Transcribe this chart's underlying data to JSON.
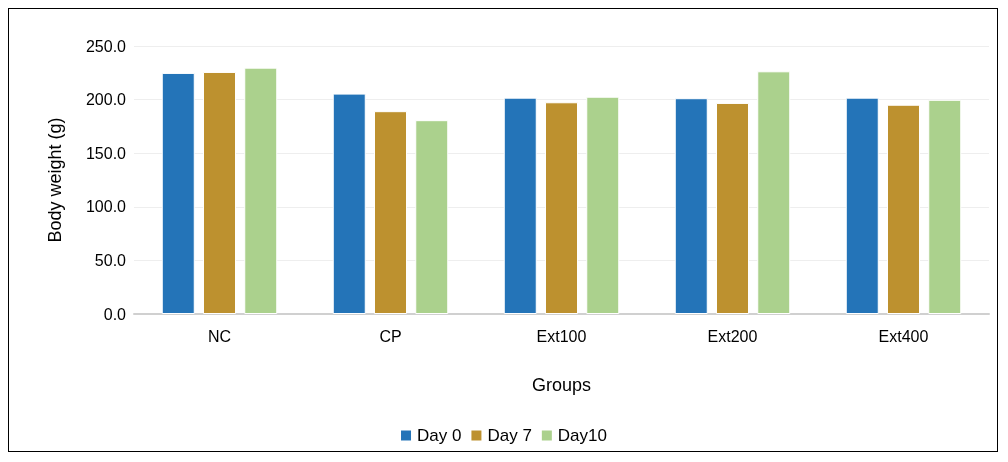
{
  "chart_data": {
    "type": "bar",
    "xlabel": "Groups",
    "ylabel": "Body weight (g)",
    "categories": [
      "NC",
      "CP",
      "Ext100",
      "Ext200",
      "Ext400"
    ],
    "series": [
      {
        "name": "Day 0",
        "color": "#2474b8",
        "values": [
          224.9,
          205.6,
          201.8,
          201.3,
          201.8
        ]
      },
      {
        "name": "Day 7",
        "color": "#bd912f",
        "values": [
          225.8,
          189.2,
          197.5,
          196.9,
          195.2
        ]
      },
      {
        "name": "Day10",
        "color": "#abd18d",
        "values": [
          229.8,
          180.8,
          202.7,
          226.4,
          199.8
        ]
      }
    ],
    "ylim": [
      0,
      250
    ],
    "yticks": [
      {
        "value": 0,
        "label": "0.0"
      },
      {
        "value": 50,
        "label": "50.0"
      },
      {
        "value": 100,
        "label": "100.0"
      },
      {
        "value": 150,
        "label": "150.0"
      },
      {
        "value": 200,
        "label": "200.0"
      },
      {
        "value": 250,
        "label": "250.0"
      }
    ],
    "grid": "y",
    "legend": "bottom"
  }
}
